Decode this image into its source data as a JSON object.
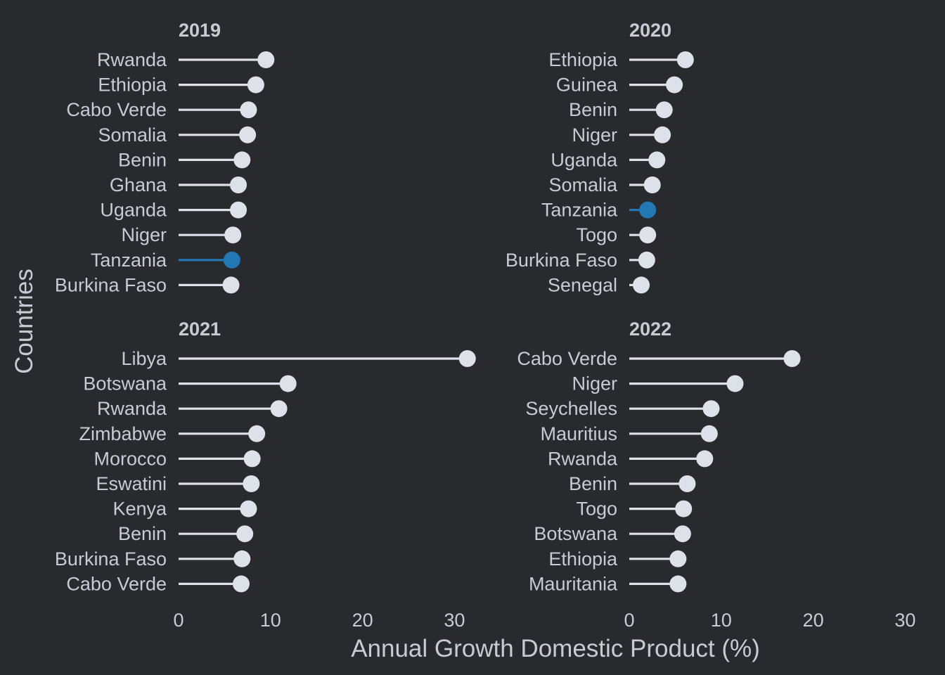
{
  "chart_data": {
    "type": "lollipop",
    "xlabel": "Annual Growth Domestic Product (%)",
    "ylabel": "Countries",
    "xlim": [
      0,
      30
    ],
    "xticks": [
      0,
      10,
      20,
      30
    ],
    "grid": false,
    "colors": {
      "background": "#282a2e",
      "default": "#dde1e8",
      "highlight": "#2178b4",
      "text": "#c8ccd2"
    },
    "highlight_country": "Tanzania",
    "panels": [
      {
        "title": "2019",
        "countries": [
          "Rwanda",
          "Ethiopia",
          "Cabo Verde",
          "Somalia",
          "Benin",
          "Ghana",
          "Uganda",
          "Niger",
          "Tanzania",
          "Burkina Faso"
        ],
        "values": [
          9.5,
          8.4,
          7.6,
          7.5,
          6.9,
          6.5,
          6.5,
          5.9,
          5.8,
          5.7
        ]
      },
      {
        "title": "2020",
        "countries": [
          "Ethiopia",
          "Guinea",
          "Benin",
          "Niger",
          "Uganda",
          "Somalia",
          "Tanzania",
          "Togo",
          "Burkina Faso",
          "Senegal"
        ],
        "values": [
          6.1,
          4.9,
          3.8,
          3.6,
          3.0,
          2.5,
          2.0,
          2.0,
          1.9,
          1.3
        ]
      },
      {
        "title": "2021",
        "countries": [
          "Libya",
          "Botswana",
          "Rwanda",
          "Zimbabwe",
          "Morocco",
          "Eswatini",
          "Kenya",
          "Benin",
          "Burkina Faso",
          "Cabo Verde"
        ],
        "values": [
          31.4,
          11.9,
          10.9,
          8.5,
          8.0,
          7.9,
          7.6,
          7.2,
          6.9,
          6.8
        ]
      },
      {
        "title": "2022",
        "countries": [
          "Cabo Verde",
          "Niger",
          "Seychelles",
          "Mauritius",
          "Rwanda",
          "Benin",
          "Togo",
          "Botswana",
          "Ethiopia",
          "Mauritania"
        ],
        "values": [
          17.7,
          11.5,
          8.9,
          8.7,
          8.2,
          6.3,
          5.9,
          5.8,
          5.3,
          5.3
        ]
      }
    ]
  }
}
